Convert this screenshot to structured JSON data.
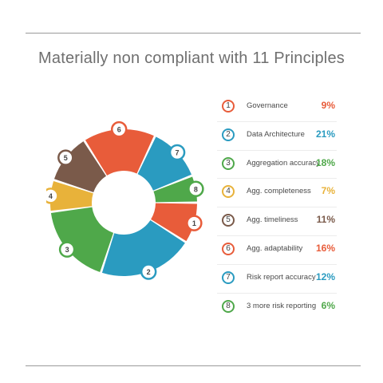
{
  "chart_data": {
    "type": "pie",
    "style": "donut",
    "title": "Materially non compliant with 11 Principles",
    "slices": [
      {
        "id": "1",
        "label": "Governance",
        "value_label": "9%",
        "value": 9,
        "color": "#e85c3a"
      },
      {
        "id": "2",
        "label": "Data Architecture",
        "value_label": "21%",
        "value": 21,
        "color": "#2a9bc0"
      },
      {
        "id": "3",
        "label": "Aggregation accuracy",
        "value_label": "18%",
        "value": 18,
        "color": "#4fa84a"
      },
      {
        "id": "4",
        "label": "Agg. completeness",
        "value_label": "7%",
        "value": 7,
        "color": "#e8b23a"
      },
      {
        "id": "5",
        "label": "Agg. timeliness",
        "value_label": "11%",
        "value": 11,
        "color": "#7a5a4a"
      },
      {
        "id": "6",
        "label": "Agg. adaptability",
        "value_label": "16%",
        "value": 16,
        "color": "#e85c3a"
      },
      {
        "id": "7",
        "label": "Risk report accuracy",
        "value_label": "12%",
        "value": 12,
        "color": "#2a9bc0"
      },
      {
        "id": "8",
        "label": "3 more risk reporting",
        "value_label": "6%",
        "value": 6,
        "color": "#4fa84a"
      }
    ],
    "legend_position": "right"
  }
}
